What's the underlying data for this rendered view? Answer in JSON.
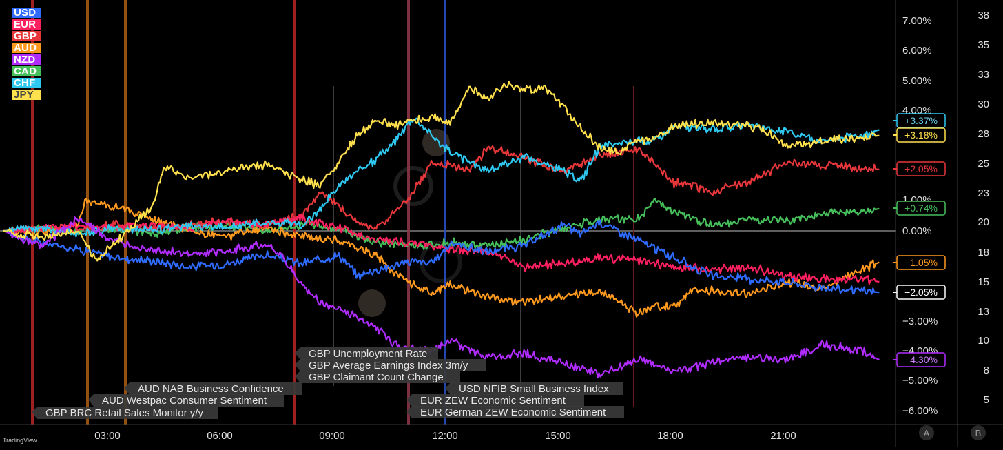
{
  "brand": "TradingView",
  "legend": [
    {
      "label": "USD",
      "color": "#2f6bff"
    },
    {
      "label": "EUR",
      "color": "#ff2060"
    },
    {
      "label": "GBP",
      "color": "#e8373a"
    },
    {
      "label": "AUD",
      "color": "#ff9a1f"
    },
    {
      "label": "NZD",
      "color": "#b02cff"
    },
    {
      "label": "CAD",
      "color": "#46c05a"
    },
    {
      "label": "CHF",
      "color": "#2ec8f0"
    },
    {
      "label": "JPY",
      "color": "#ffe04d"
    }
  ],
  "axis_buttons": {
    "a": "A",
    "b": "B"
  },
  "chart_data": {
    "type": "line",
    "x_labels": [
      "03:00",
      "06:00",
      "09:00",
      "12:00",
      "15:00",
      "18:00",
      "21:00"
    ],
    "y_ticks_left": [
      "7.00%",
      "6.00%",
      "5.00%",
      "4.00%",
      "1.00%",
      "0.00%",
      "−3.00%",
      "−4.00%",
      "−5.00%",
      "−6.00%"
    ],
    "y_ticks_right": [
      "38",
      "35",
      "33",
      "30",
      "28",
      "25",
      "23",
      "20",
      "18",
      "15",
      "13",
      "10",
      "8",
      "5"
    ],
    "ylim": [
      -6.5,
      7.5
    ],
    "grid": false,
    "legend_position": "top-left",
    "series": [
      {
        "name": "USD",
        "color": "#2f6bff",
        "end_label": "−2.05%",
        "x": [
          0,
          1,
          2,
          3,
          4,
          5,
          6,
          7,
          8,
          9,
          9.5,
          10,
          11,
          11.5,
          12,
          13,
          14,
          15,
          15.5,
          16,
          17,
          18,
          19,
          20,
          21,
          22,
          23,
          23.5
        ],
        "y": [
          0,
          -0.4,
          -0.6,
          -0.9,
          -1.0,
          -1.2,
          -1.1,
          -0.8,
          -1.1,
          -0.8,
          -1.5,
          -1.3,
          -1.0,
          -1.1,
          -0.4,
          -0.7,
          -0.5,
          0.2,
          -0.1,
          0.3,
          -0.3,
          -0.9,
          -1.5,
          -1.6,
          -1.7,
          -1.9,
          -2.0,
          -2.05
        ]
      },
      {
        "name": "EUR",
        "color": "#ff2060",
        "end_label": "",
        "x": [
          0,
          1,
          2,
          3,
          4,
          5,
          6,
          7,
          8,
          9,
          10,
          11,
          12,
          13,
          14,
          15,
          16,
          17,
          18,
          19,
          20,
          21,
          22,
          23,
          23.5
        ],
        "y": [
          0,
          0.1,
          0.2,
          0.1,
          0.2,
          0.1,
          0.3,
          0.2,
          0.4,
          0.1,
          -0.3,
          -0.4,
          -0.6,
          -0.7,
          -1.2,
          -1.1,
          -0.9,
          -1.0,
          -1.2,
          -1.3,
          -1.2,
          -1.5,
          -1.6,
          -1.6,
          -1.7
        ]
      },
      {
        "name": "GBP",
        "color": "#e8373a",
        "end_label": "+2.05%",
        "x": [
          0,
          1,
          2,
          3,
          4,
          5,
          6,
          7,
          8,
          8.5,
          9,
          9.5,
          10,
          10.5,
          11,
          11.5,
          12,
          12.5,
          13,
          14,
          15,
          15.5,
          16,
          17,
          17.5,
          18,
          18.5,
          19,
          20,
          21,
          22,
          23,
          23.5
        ],
        "y": [
          0,
          0.1,
          0.0,
          0.2,
          0.1,
          0.2,
          0.3,
          0.2,
          0.5,
          1.3,
          0.8,
          0.3,
          0.1,
          0.6,
          1.3,
          2.3,
          2.2,
          2.0,
          2.8,
          2.4,
          2.0,
          2.2,
          2.5,
          2.7,
          2.2,
          1.6,
          1.5,
          1.3,
          1.6,
          2.3,
          2.2,
          2.1,
          2.05
        ]
      },
      {
        "name": "AUD",
        "color": "#ff9a1f",
        "end_label": "−1.05%",
        "x": [
          0,
          1,
          2,
          2.2,
          3,
          4,
          5,
          6,
          7,
          8,
          9,
          10,
          10.5,
          11,
          11.5,
          12,
          13,
          14,
          15,
          16,
          16.5,
          17,
          17.5,
          18,
          18.5,
          19,
          20,
          21,
          22,
          23,
          23.5
        ],
        "y": [
          0,
          0.0,
          0.2,
          1.0,
          0.8,
          0.4,
          0.0,
          -0.2,
          0.1,
          -0.2,
          -0.3,
          -0.8,
          -1.4,
          -1.8,
          -2.1,
          -1.8,
          -2.2,
          -2.4,
          -2.2,
          -2.0,
          -2.3,
          -2.8,
          -2.5,
          -2.5,
          -2.0,
          -2.0,
          -2.1,
          -1.7,
          -1.9,
          -1.3,
          -1.05
        ]
      },
      {
        "name": "NZD",
        "color": "#b02cff",
        "end_label": "−4.30%",
        "x": [
          0,
          1,
          2,
          3,
          4,
          5,
          6,
          7,
          7.5,
          8,
          8.5,
          9,
          9.5,
          10,
          10.5,
          11,
          11.5,
          12,
          12.5,
          13,
          14,
          15,
          16,
          17,
          18,
          19,
          20,
          21,
          22,
          23,
          23.5
        ],
        "y": [
          0,
          -0.5,
          0.4,
          -0.4,
          -0.6,
          -0.8,
          -0.7,
          -0.4,
          -0.9,
          -1.8,
          -2.4,
          -2.6,
          -2.9,
          -3.2,
          -3.8,
          -3.9,
          -4.0,
          -3.6,
          -4.0,
          -4.2,
          -4.1,
          -4.4,
          -4.8,
          -4.3,
          -4.7,
          -4.4,
          -4.2,
          -4.3,
          -3.8,
          -4.0,
          -4.3
        ]
      },
      {
        "name": "CAD",
        "color": "#46c05a",
        "end_label": "+0.74%",
        "x": [
          0,
          1,
          2,
          3,
          4,
          5,
          6,
          7,
          8,
          9,
          10,
          11,
          12,
          13,
          14,
          15,
          16,
          17,
          17.5,
          18,
          18.5,
          19,
          20,
          21,
          22,
          23,
          23.5
        ],
        "y": [
          0,
          0.1,
          0.0,
          0.1,
          -0.1,
          0.1,
          0.2,
          0.0,
          0.2,
          0.1,
          -0.4,
          -0.5,
          -0.4,
          -0.5,
          -0.3,
          0.1,
          0.4,
          0.4,
          1.0,
          0.6,
          0.4,
          0.2,
          0.4,
          0.3,
          0.6,
          0.6,
          0.74
        ]
      },
      {
        "name": "CHF",
        "color": "#2ec8f0",
        "end_label": "+3.37%",
        "x": [
          0,
          1,
          2,
          3,
          4,
          5,
          6,
          7,
          8,
          8.5,
          9,
          9.5,
          10,
          10.5,
          11,
          11.5,
          12,
          13,
          14,
          15,
          15.5,
          16,
          17,
          17.5,
          18,
          19,
          20,
          21,
          22,
          23,
          23.5
        ],
        "y": [
          0,
          0.1,
          -0.1,
          0.1,
          0.0,
          0.2,
          0.1,
          0.3,
          0.2,
          0.7,
          1.5,
          2.0,
          2.4,
          3.0,
          3.8,
          3.2,
          2.6,
          2.0,
          2.5,
          2.0,
          1.7,
          2.8,
          3.0,
          3.0,
          3.5,
          3.4,
          3.5,
          3.3,
          3.0,
          3.2,
          3.37
        ]
      },
      {
        "name": "JPY",
        "color": "#ffe04d",
        "end_label": "+3.18%",
        "x": [
          0,
          1,
          2,
          2.5,
          3,
          4,
          4.3,
          5,
          6,
          7,
          8,
          8.5,
          9,
          9.5,
          10,
          10.5,
          11,
          11.5,
          12,
          12.5,
          13,
          13.5,
          14,
          14.5,
          15,
          15.5,
          16,
          16.5,
          17,
          17.5,
          18,
          19,
          20,
          20.5,
          21,
          22,
          23,
          23.5
        ],
        "y": [
          0,
          -0.2,
          0.0,
          -1.0,
          -0.4,
          0.8,
          2.1,
          1.8,
          2.0,
          2.2,
          1.7,
          1.5,
          2.3,
          3.2,
          3.7,
          3.5,
          3.7,
          3.8,
          3.6,
          4.8,
          4.4,
          4.9,
          4.7,
          4.8,
          4.2,
          3.4,
          2.8,
          2.6,
          3.0,
          3.1,
          3.5,
          3.6,
          3.5,
          3.3,
          2.8,
          3.0,
          3.1,
          3.18
        ]
      }
    ],
    "events": [
      {
        "label": "GBP BRC Retail Sales Monitor y/y",
        "x": 1.0,
        "color": "#b02525"
      },
      {
        "label": "AUD Westpac Consumer Sentiment",
        "x": 2.5,
        "color": "#a65a14"
      },
      {
        "label": "AUD NAB Business Confidence",
        "x": 3.5,
        "color": "#a65a14"
      },
      {
        "label": "GBP Unemployment Rate",
        "x": 8.0,
        "color": "#b02525"
      },
      {
        "label": "GBP Average Earnings Index 3m/y",
        "x": 8.0,
        "color": "#b02525"
      },
      {
        "label": "GBP Claimant Count Change",
        "x": 8.0,
        "color": "#b02525"
      },
      {
        "label": "EUR ZEW Economic Sentiment",
        "x": 11.0,
        "color": "#8a3648"
      },
      {
        "label": "EUR German ZEW Economic Sentiment",
        "x": 11.0,
        "color": "#8a3648"
      },
      {
        "label": "USD NFIB Small Business Index",
        "x": 12.0,
        "color": "#2a4fc4"
      }
    ]
  }
}
